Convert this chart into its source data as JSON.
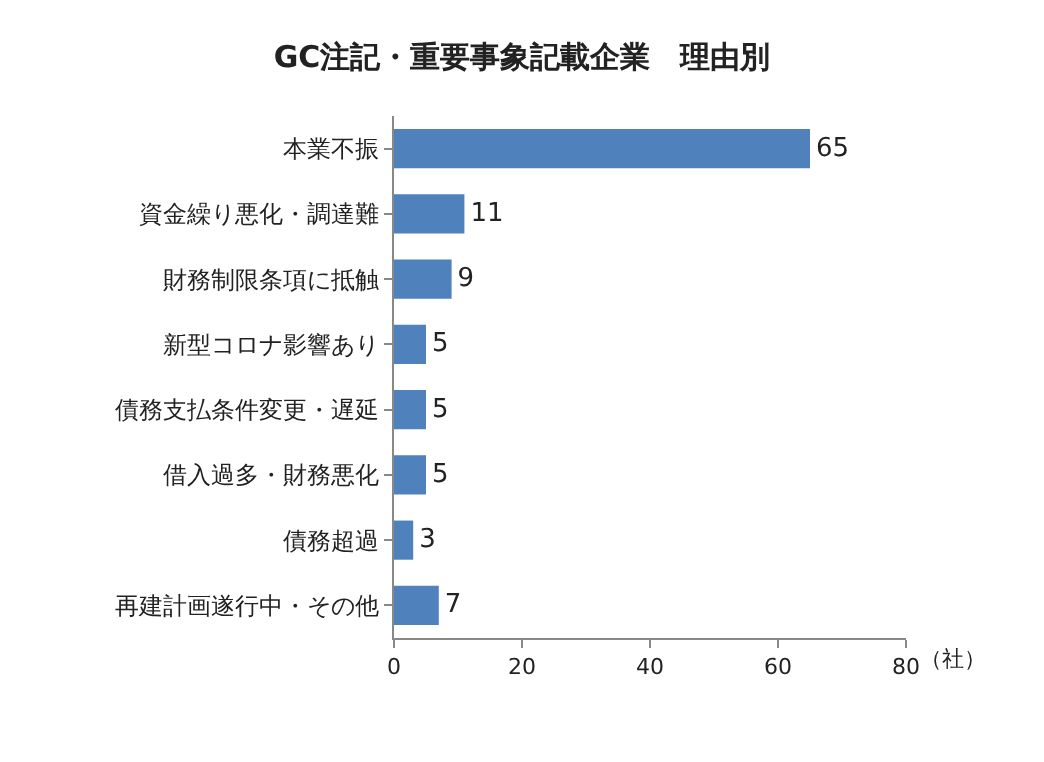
{
  "chart_data": {
    "type": "bar",
    "orientation": "horizontal",
    "title": "GC注記・重要事象記載企業　理由別",
    "xlabel": "（社）",
    "categories": [
      "本業不振",
      "資金繰り悪化・調達難",
      "財務制限条項に抵触",
      "新型コロナ影響あり",
      "債務支払条件変更・遅延",
      "借入過多・財務悪化",
      "債務超過",
      "再建計画遂行中・その他"
    ],
    "values": [
      65,
      11,
      9,
      5,
      5,
      5,
      3,
      7
    ],
    "color": "#4f81bd",
    "xlim": [
      0,
      80
    ],
    "xticks": [
      0,
      20,
      40,
      60,
      80
    ],
    "grid": false,
    "data_labels": true
  }
}
